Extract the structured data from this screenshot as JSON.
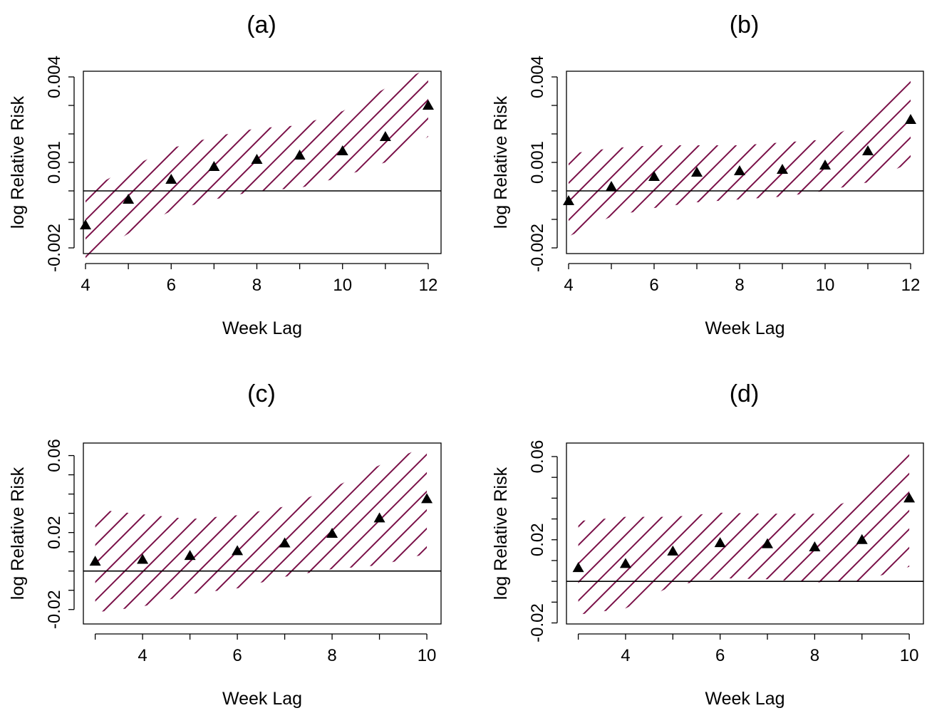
{
  "chart_data": [
    {
      "type": "scatter",
      "title": "(a)",
      "xlabel": "Week Lag",
      "ylabel": "log Relative Risk",
      "xlim": [
        3.95,
        12.3
      ],
      "ylim": [
        -0.0022,
        0.0042
      ],
      "xticks": [
        4,
        5,
        6,
        7,
        8,
        9,
        10,
        11,
        12
      ],
      "xtick_labels": [
        "4",
        "6",
        "8",
        "10",
        "12"
      ],
      "xtick_label_values": [
        4,
        6,
        8,
        10,
        12
      ],
      "yticks": [
        -0.002,
        -0.001,
        0.0,
        0.001,
        0.002,
        0.003,
        0.004
      ],
      "ytick_labels": [
        "-0.002",
        "0.001",
        "0.004"
      ],
      "ytick_label_values": [
        -0.002,
        0.001,
        0.004
      ],
      "reference_line": 0,
      "x": [
        4,
        5,
        6,
        7,
        8,
        9,
        10,
        11,
        12
      ],
      "estimate": [
        -0.0012,
        -0.0003,
        0.0004,
        0.00085,
        0.0011,
        0.00125,
        0.0014,
        0.0019,
        0.003
      ],
      "lower": [
        -0.0024,
        -0.0015,
        -0.0007,
        -0.0003,
        0.0,
        0.0001,
        0.0005,
        0.001,
        0.0019
      ],
      "upper": [
        0.0,
        0.0008,
        0.0015,
        0.0019,
        0.0022,
        0.0023,
        0.0028,
        0.0036,
        0.0043
      ],
      "band_color": "#7a1048",
      "marker": "triangle"
    },
    {
      "type": "scatter",
      "title": "(b)",
      "xlabel": "Week Lag",
      "ylabel": "log Relative Risk",
      "xlim": [
        3.95,
        12.3
      ],
      "ylim": [
        -0.0022,
        0.0042
      ],
      "xticks": [
        4,
        5,
        6,
        7,
        8,
        9,
        10,
        11,
        12
      ],
      "xtick_labels": [
        "4",
        "6",
        "8",
        "10",
        "12"
      ],
      "xtick_label_values": [
        4,
        6,
        8,
        10,
        12
      ],
      "yticks": [
        -0.002,
        -0.001,
        0.0,
        0.001,
        0.002,
        0.003,
        0.004
      ],
      "ytick_labels": [
        "-0.002",
        "0.001",
        "0.004"
      ],
      "ytick_label_values": [
        -0.002,
        0.001,
        0.004
      ],
      "reference_line": 0,
      "x": [
        4,
        5,
        6,
        7,
        8,
        9,
        10,
        11,
        12
      ],
      "estimate": [
        -0.00035,
        0.00015,
        0.0005,
        0.00065,
        0.0007,
        0.00075,
        0.0009,
        0.0014,
        0.0025
      ],
      "lower": [
        -0.0016,
        -0.0009,
        -0.0006,
        -0.0004,
        -0.0003,
        -0.0002,
        0.0,
        0.0003,
        0.001
      ],
      "upper": [
        0.0013,
        0.0015,
        0.0016,
        0.0016,
        0.0016,
        0.0017,
        0.0018,
        0.0025,
        0.004
      ],
      "band_color": "#7a1048",
      "marker": "triangle"
    },
    {
      "type": "scatter",
      "title": "(c)",
      "xlabel": "Week Lag",
      "ylabel": "log Relative Risk",
      "xlim": [
        2.75,
        10.3
      ],
      "ylim": [
        -0.0275,
        0.0665
      ],
      "xticks": [
        3,
        4,
        5,
        6,
        7,
        8,
        9,
        10
      ],
      "xtick_labels": [
        "4",
        "6",
        "8",
        "10"
      ],
      "xtick_label_values": [
        4,
        6,
        8,
        10
      ],
      "yticks": [
        -0.02,
        -0.01,
        0.0,
        0.01,
        0.02,
        0.03,
        0.04,
        0.05,
        0.06
      ],
      "ytick_labels": [
        "-0.02",
        "0.02",
        "0.06"
      ],
      "ytick_label_values": [
        -0.02,
        0.02,
        0.06
      ],
      "reference_line": 0,
      "x": [
        3,
        4,
        5,
        6,
        7,
        8,
        9,
        10
      ],
      "estimate": [
        0.005,
        0.006,
        0.008,
        0.0105,
        0.0145,
        0.0195,
        0.0275,
        0.0375
      ],
      "lower": [
        -0.0215,
        -0.0185,
        -0.012,
        -0.009,
        -0.003,
        0.001,
        0.003,
        0.009
      ],
      "upper": [
        0.032,
        0.0295,
        0.027,
        0.029,
        0.0335,
        0.043,
        0.055,
        0.065
      ],
      "band_color": "#7a1048",
      "marker": "triangle"
    },
    {
      "type": "scatter",
      "title": "(d)",
      "xlabel": "Week Lag",
      "ylabel": "log Relative Risk",
      "xlim": [
        2.75,
        10.3
      ],
      "ylim": [
        -0.0205,
        0.0665
      ],
      "xticks": [
        3,
        4,
        5,
        6,
        7,
        8,
        9,
        10
      ],
      "xtick_labels": [
        "4",
        "6",
        "8",
        "10"
      ],
      "xtick_label_values": [
        4,
        6,
        8,
        10
      ],
      "yticks": [
        -0.02,
        -0.01,
        0.0,
        0.01,
        0.02,
        0.03,
        0.04,
        0.05,
        0.06
      ],
      "ytick_labels": [
        "-0.02",
        "0.02",
        "0.06"
      ],
      "ytick_label_values": [
        -0.02,
        0.02,
        0.06
      ],
      "reference_line": 0,
      "x": [
        3,
        4,
        5,
        6,
        7,
        8,
        9,
        10
      ],
      "estimate": [
        0.0065,
        0.0085,
        0.0145,
        0.0185,
        0.018,
        0.0165,
        0.02,
        0.04
      ],
      "lower": [
        -0.016,
        -0.013,
        -0.002,
        0.0015,
        0.001,
        -0.0005,
        0.0,
        0.007
      ],
      "upper": [
        0.029,
        0.031,
        0.031,
        0.033,
        0.0325,
        0.0325,
        0.041,
        0.065
      ],
      "band_color": "#7a1048",
      "marker": "triangle"
    }
  ]
}
